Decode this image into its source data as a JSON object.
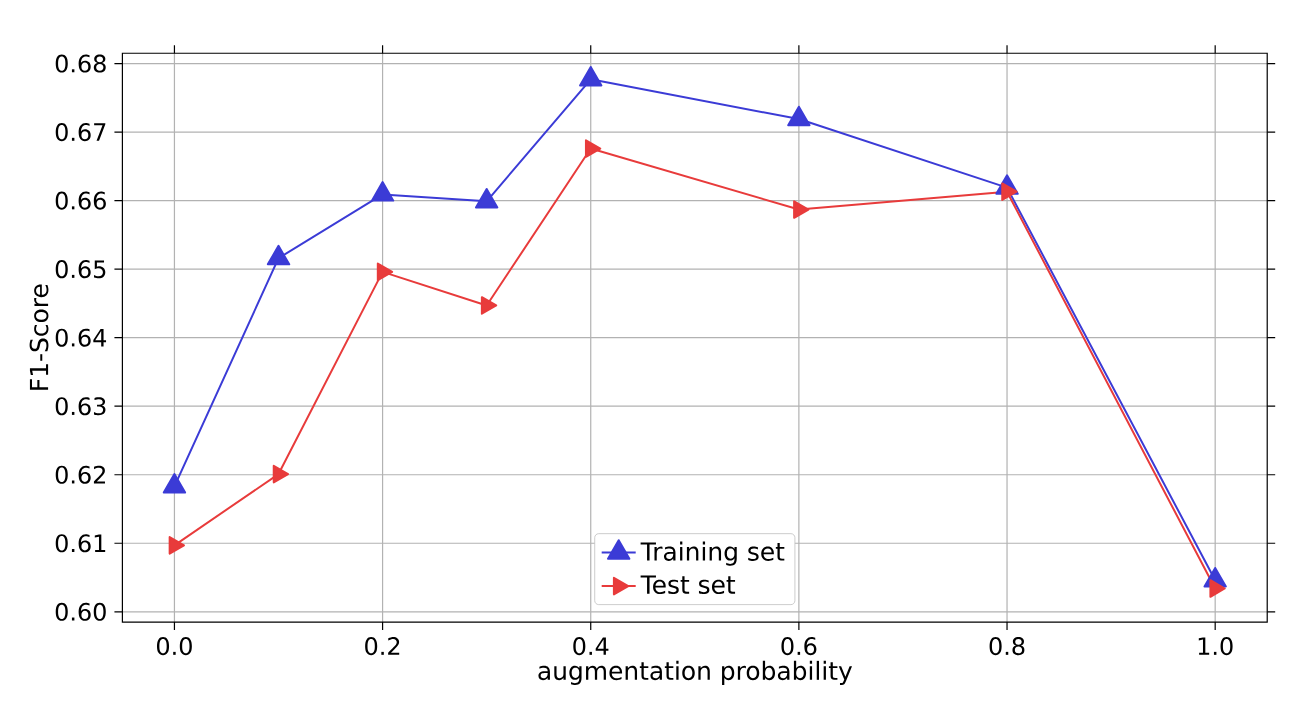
{
  "chart_data": {
    "type": "line",
    "xlabel": "augmentation probability",
    "ylabel": "F1-Score",
    "x": [
      0.0,
      0.1,
      0.2,
      0.3,
      0.4,
      0.6,
      0.8,
      1.0
    ],
    "series": [
      {
        "name": "Training set",
        "color": "#3b3bd6",
        "marker": "triangle",
        "values": [
          0.6183,
          0.6516,
          0.6609,
          0.6599,
          0.6777,
          0.6719,
          0.6619,
          0.6046
        ]
      },
      {
        "name": "Test set",
        "color": "#e83b3b",
        "marker": "triangle-right",
        "values": [
          0.6097,
          0.6201,
          0.6496,
          0.6447,
          0.6676,
          0.6587,
          0.6613,
          0.6034
        ]
      }
    ],
    "xlim": [
      -0.05,
      1.05
    ],
    "ylim": [
      0.5985,
      0.6815
    ],
    "xticks": [
      {
        "value": 0.0,
        "label": "0.0"
      },
      {
        "value": 0.2,
        "label": "0.2"
      },
      {
        "value": 0.4,
        "label": "0.4"
      },
      {
        "value": 0.6,
        "label": "0.6"
      },
      {
        "value": 0.8,
        "label": "0.8"
      },
      {
        "value": 1.0,
        "label": "1.0"
      }
    ],
    "yticks": [
      {
        "value": 0.6,
        "label": "0.60"
      },
      {
        "value": 0.61,
        "label": "0.61"
      },
      {
        "value": 0.62,
        "label": "0.62"
      },
      {
        "value": 0.63,
        "label": "0.63"
      },
      {
        "value": 0.64,
        "label": "0.64"
      },
      {
        "value": 0.65,
        "label": "0.65"
      },
      {
        "value": 0.66,
        "label": "0.66"
      },
      {
        "value": 0.67,
        "label": "0.67"
      },
      {
        "value": 0.68,
        "label": "0.68"
      }
    ],
    "grid": true,
    "legend": "bottom",
    "line_style": "solid"
  }
}
